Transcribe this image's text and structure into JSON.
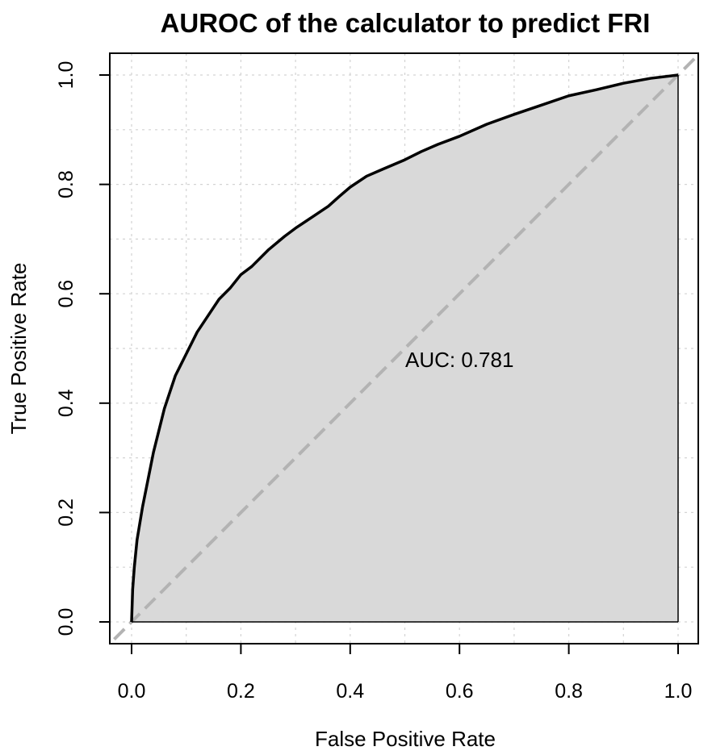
{
  "chart_data": {
    "type": "line",
    "title": "AUROC of the calculator to predict FRI",
    "xlabel": "False Positive Rate",
    "ylabel": "True Positive Rate",
    "xlim": [
      0.0,
      1.0
    ],
    "ylim": [
      0.0,
      1.0
    ],
    "x_ticks": [
      "0.0",
      "0.2",
      "0.4",
      "0.6",
      "0.8",
      "1.0"
    ],
    "y_ticks": [
      "0.0",
      "0.2",
      "0.4",
      "0.6",
      "0.8",
      "1.0"
    ],
    "grid": true,
    "annotation": "AUC: 0.781",
    "area_fill_color": "#d9d9d9",
    "curve_color": "#000000",
    "reference_line_color": "#b3b3b3",
    "series": [
      {
        "x": [
          0.0,
          0.002,
          0.005,
          0.01,
          0.015,
          0.02,
          0.03,
          0.04,
          0.05,
          0.06,
          0.07,
          0.08,
          0.09,
          0.1,
          0.12,
          0.14,
          0.16,
          0.18,
          0.2,
          0.22,
          0.25,
          0.28,
          0.3,
          0.33,
          0.36,
          0.38,
          0.4,
          0.43,
          0.46,
          0.5,
          0.53,
          0.56,
          0.6,
          0.65,
          0.7,
          0.75,
          0.8,
          0.85,
          0.9,
          0.95,
          1.0
        ],
        "y": [
          0.0,
          0.06,
          0.1,
          0.15,
          0.18,
          0.21,
          0.26,
          0.31,
          0.35,
          0.39,
          0.42,
          0.45,
          0.47,
          0.49,
          0.53,
          0.56,
          0.59,
          0.61,
          0.635,
          0.65,
          0.68,
          0.705,
          0.72,
          0.74,
          0.76,
          0.778,
          0.795,
          0.815,
          0.828,
          0.845,
          0.86,
          0.873,
          0.888,
          0.91,
          0.928,
          0.945,
          0.962,
          0.973,
          0.985,
          0.994,
          1.0
        ]
      },
      {
        "x": [
          0.0,
          1.0
        ],
        "y": [
          0.0,
          1.0
        ]
      }
    ]
  }
}
